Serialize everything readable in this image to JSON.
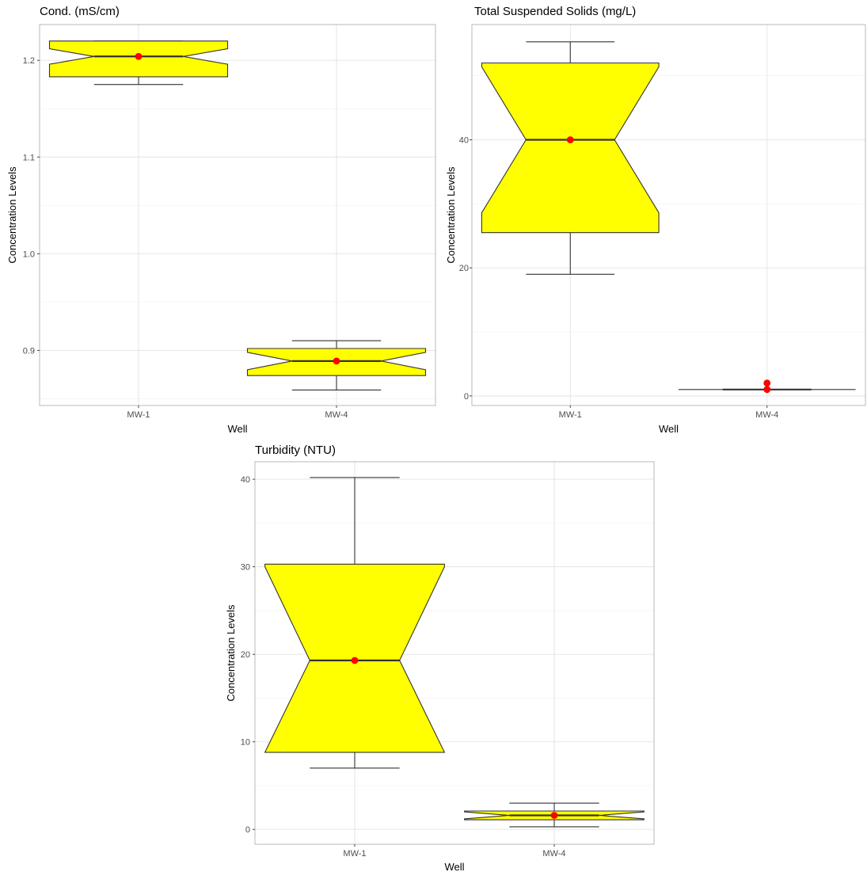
{
  "chart_data": [
    {
      "type": "boxplot",
      "title": "Cond. (mS/cm)",
      "xlabel": "Well",
      "ylabel": "Concentration Levels",
      "categories": [
        "MW-1",
        "MW-4"
      ],
      "ylim": [
        0.843,
        1.237
      ],
      "yticks": [
        0.9,
        1.0,
        1.1,
        1.2
      ],
      "ytick_labels": [
        "0.9",
        "1.0",
        "1.1",
        "1.2"
      ],
      "grid": true,
      "notched": true,
      "fill_color": "#ffff00",
      "point_color": "#ff0000",
      "boxes": [
        {
          "category": "MW-1",
          "whisker_low": 1.175,
          "q1": 1.183,
          "median": 1.204,
          "q3": 1.22,
          "whisker_high": 1.22,
          "notch_low": 1.196,
          "notch_high": 1.212,
          "points": [
            1.204
          ]
        },
        {
          "category": "MW-4",
          "whisker_low": 0.859,
          "q1": 0.874,
          "median": 0.889,
          "q3": 0.902,
          "whisker_high": 0.91,
          "notch_low": 0.88,
          "notch_high": 0.898,
          "points": [
            0.889
          ]
        }
      ]
    },
    {
      "type": "boxplot",
      "title": "Total Suspended Solids (mg/L)",
      "xlabel": "Well",
      "ylabel": "Concentration Levels",
      "categories": [
        "MW-1",
        "MW-4"
      ],
      "ylim": [
        -1.5,
        58.0
      ],
      "yticks": [
        0,
        20,
        40
      ],
      "ytick_labels": [
        "0",
        "20",
        "40"
      ],
      "grid": true,
      "notched": true,
      "fill_color": "#ffff00",
      "point_color": "#ff0000",
      "boxes": [
        {
          "category": "MW-1",
          "whisker_low": 19.0,
          "q1": 25.5,
          "median": 40.0,
          "q3": 52.0,
          "whisker_high": 55.3,
          "notch_low": 28.6,
          "notch_high": 51.4,
          "points": [
            40.0
          ]
        },
        {
          "category": "MW-4",
          "whisker_low": 1.0,
          "q1": 1.0,
          "median": 1.0,
          "q3": 1.0,
          "whisker_high": 1.0,
          "notch_low": 1.0,
          "notch_high": 1.0,
          "points": [
            1.0,
            2.0
          ]
        }
      ]
    },
    {
      "type": "boxplot",
      "title": "Turbidity (NTU)",
      "xlabel": "Well",
      "ylabel": "Concentration Levels",
      "categories": [
        "MW-1",
        "MW-4"
      ],
      "ylim": [
        -1.7,
        42.0
      ],
      "yticks": [
        0,
        10,
        20,
        30,
        40
      ],
      "ytick_labels": [
        "0",
        "10",
        "20",
        "30",
        "40"
      ],
      "grid": true,
      "notched": true,
      "fill_color": "#ffff00",
      "point_color": "#ff0000",
      "boxes": [
        {
          "category": "MW-1",
          "whisker_low": 7.0,
          "q1": 8.8,
          "median": 19.3,
          "q3": 30.3,
          "whisker_high": 40.2,
          "notch_low": 8.8,
          "notch_high": 30.0,
          "points": [
            19.3
          ]
        },
        {
          "category": "MW-4",
          "whisker_low": 0.3,
          "q1": 1.1,
          "median": 1.6,
          "q3": 2.1,
          "whisker_high": 3.0,
          "notch_low": 1.2,
          "notch_high": 2.0,
          "points": [
            1.6
          ]
        }
      ]
    }
  ]
}
